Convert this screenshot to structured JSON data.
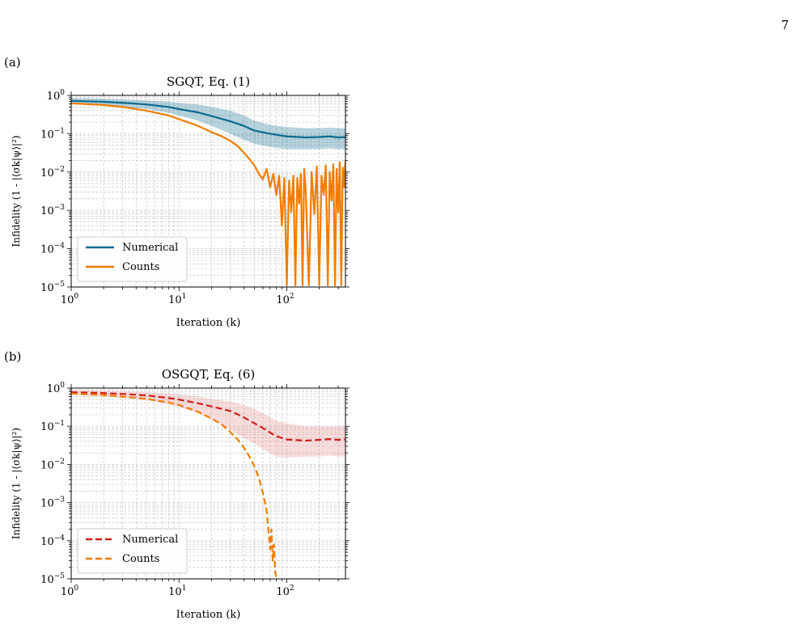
{
  "page": {
    "number": "7"
  },
  "chart_data": [
    {
      "panel_label": "(a)",
      "type": "line",
      "title": "SGQT, Eq. (1)",
      "xlabel": "Iteration (k)",
      "ylabel": "Infidelity (1 - |⟨σk|ψ⟩|²)",
      "xscale": "log",
      "yscale": "log",
      "xlim": [
        1,
        350
      ],
      "ylim": [
        1e-05,
        1
      ],
      "grid": true,
      "legend_position": "lower-left",
      "xticks": [
        {
          "base": "10",
          "exp": "0"
        },
        {
          "base": "10",
          "exp": "1"
        },
        {
          "base": "10",
          "exp": "2"
        }
      ],
      "yticks": [
        {
          "base": "10",
          "exp": "0"
        },
        {
          "base": "10",
          "exp": "−1"
        },
        {
          "base": "10",
          "exp": "−2"
        },
        {
          "base": "10",
          "exp": "−3"
        },
        {
          "base": "10",
          "exp": "−4"
        },
        {
          "base": "10",
          "exp": "−5"
        }
      ],
      "series": [
        {
          "name": "Numerical",
          "color": "#0a6a8f",
          "band_color": "#0a6a8f",
          "style": "solid",
          "x": [
            1,
            2,
            3,
            5,
            8,
            10,
            15,
            20,
            30,
            40,
            50,
            70,
            100,
            150,
            200,
            250,
            300,
            350
          ],
          "y": [
            0.72,
            0.68,
            0.64,
            0.58,
            0.5,
            0.44,
            0.36,
            0.29,
            0.21,
            0.16,
            0.12,
            0.1,
            0.085,
            0.08,
            0.082,
            0.085,
            0.08,
            0.082
          ],
          "band_low": [
            0.6,
            0.55,
            0.5,
            0.44,
            0.35,
            0.3,
            0.22,
            0.16,
            0.1,
            0.07,
            0.055,
            0.045,
            0.04,
            0.04,
            0.04,
            0.042,
            0.04,
            0.04
          ],
          "band_high": [
            0.86,
            0.82,
            0.78,
            0.74,
            0.68,
            0.64,
            0.58,
            0.5,
            0.4,
            0.3,
            0.22,
            0.17,
            0.15,
            0.14,
            0.14,
            0.145,
            0.14,
            0.14
          ]
        },
        {
          "name": "Counts",
          "color": "#f07d00",
          "style": "solid",
          "x": [
            1,
            2,
            3,
            5,
            8,
            10,
            15,
            20,
            25,
            30,
            35,
            40,
            45,
            50,
            55,
            60,
            65,
            70,
            75,
            80,
            85,
            90,
            95,
            100,
            105,
            110,
            115,
            120,
            125,
            130,
            135,
            140,
            145,
            150,
            160,
            170,
            180,
            190,
            200,
            210,
            220,
            230,
            240,
            250,
            260,
            270,
            280,
            290,
            300,
            310,
            320,
            330,
            340,
            350
          ],
          "y": [
            0.62,
            0.56,
            0.5,
            0.4,
            0.3,
            0.24,
            0.16,
            0.11,
            0.085,
            0.065,
            0.048,
            0.032,
            0.022,
            0.015,
            0.009,
            0.0065,
            0.012,
            0.004,
            0.009,
            0.0025,
            0.008,
            0.0004,
            0.007,
            1.1e-05,
            0.006,
            0.0009,
            0.008,
            1.1e-05,
            0.007,
            0.0015,
            0.009,
            1.1e-05,
            0.012,
            0.003,
            1.1e-05,
            0.01,
            0.0008,
            0.014,
            1.1e-05,
            0.008,
            0.0025,
            0.015,
            1.1e-05,
            0.01,
            0.0018,
            0.016,
            1.1e-05,
            0.012,
            0.0009,
            0.018,
            1.1e-05,
            0.013,
            0.004,
            0.02
          ]
        }
      ]
    },
    {
      "panel_label": "(b)",
      "type": "line",
      "title": "OSGQT, Eq. (6)",
      "xlabel": "Iteration (k)",
      "ylabel": "Infidelity (1 - |⟨σk|ψ⟩|²)",
      "xscale": "log",
      "yscale": "log",
      "xlim": [
        1,
        350
      ],
      "ylim": [
        1e-05,
        1
      ],
      "grid": true,
      "legend_position": "lower-left",
      "xticks": [
        {
          "base": "10",
          "exp": "0"
        },
        {
          "base": "10",
          "exp": "1"
        },
        {
          "base": "10",
          "exp": "2"
        }
      ],
      "yticks": [
        {
          "base": "10",
          "exp": "0"
        },
        {
          "base": "10",
          "exp": "−1"
        },
        {
          "base": "10",
          "exp": "−2"
        },
        {
          "base": "10",
          "exp": "−3"
        },
        {
          "base": "10",
          "exp": "−4"
        },
        {
          "base": "10",
          "exp": "−5"
        }
      ],
      "series": [
        {
          "name": "Numerical",
          "color": "#cc1f1a",
          "band_color": "#e68a8a",
          "style": "dashed",
          "x": [
            1,
            2,
            3,
            5,
            8,
            10,
            15,
            20,
            30,
            40,
            50,
            60,
            70,
            80,
            100,
            150,
            200,
            250,
            300,
            350
          ],
          "y": [
            0.78,
            0.74,
            0.7,
            0.64,
            0.55,
            0.5,
            0.4,
            0.33,
            0.25,
            0.17,
            0.12,
            0.09,
            0.068,
            0.055,
            0.045,
            0.042,
            0.044,
            0.046,
            0.044,
            0.045
          ],
          "band_low": [
            0.66,
            0.6,
            0.55,
            0.48,
            0.38,
            0.32,
            0.22,
            0.15,
            0.08,
            0.05,
            0.035,
            0.025,
            0.02,
            0.016,
            0.015,
            0.016,
            0.016,
            0.017,
            0.016,
            0.016
          ],
          "band_high": [
            0.9,
            0.86,
            0.82,
            0.78,
            0.72,
            0.68,
            0.6,
            0.52,
            0.44,
            0.36,
            0.28,
            0.22,
            0.17,
            0.14,
            0.12,
            0.1,
            0.1,
            0.1,
            0.1,
            0.1
          ]
        },
        {
          "name": "Counts",
          "color": "#f07d00",
          "style": "dashed",
          "x": [
            1,
            2,
            3,
            5,
            8,
            10,
            15,
            20,
            25,
            30,
            35,
            40,
            45,
            50,
            55,
            60,
            65,
            68,
            70,
            72,
            74,
            76,
            78,
            80
          ],
          "y": [
            0.72,
            0.66,
            0.6,
            0.52,
            0.42,
            0.36,
            0.24,
            0.16,
            0.11,
            0.07,
            0.045,
            0.028,
            0.016,
            0.009,
            0.0045,
            0.0018,
            0.0006,
            0.00015,
            6e-05,
            0.0002,
            3e-05,
            8e-05,
            1.5e-05,
            1.1e-05
          ]
        }
      ]
    }
  ]
}
